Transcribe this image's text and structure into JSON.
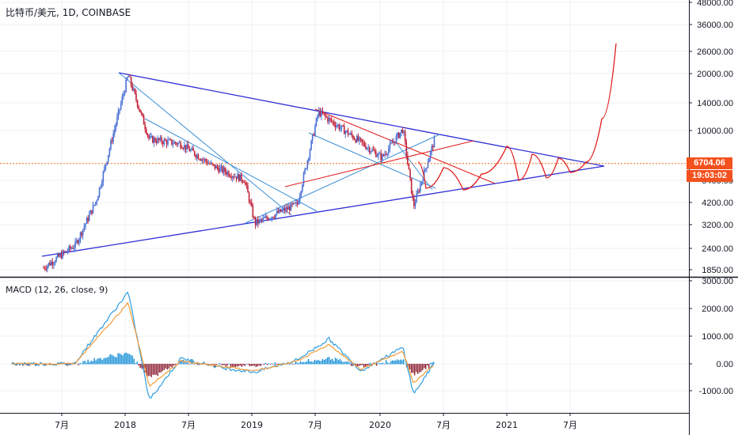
{
  "header": {
    "symbol": "比特币/美元",
    "interval": "1D",
    "exchange": "COINBASE"
  },
  "macd_header": {
    "label": "MACD (12, 26, close, 9)"
  },
  "price_axis": {
    "ticks": [
      "48000.00",
      "36000.00",
      "26000.00",
      "20000.00",
      "14000.00",
      "10000.00",
      "5400.00",
      "4200.00",
      "3200.00",
      "2400.00",
      "1850.00"
    ],
    "current_price": "6704.06",
    "countdown": "19:03:02"
  },
  "macd_axis": {
    "ticks": [
      "3000.00",
      "2000.00",
      "1000.00",
      "0.00",
      "-1000.00"
    ]
  },
  "time_axis": {
    "ticks": [
      "7月",
      "2018",
      "7月",
      "2019",
      "7月",
      "2020",
      "7月",
      "2021",
      "7月"
    ]
  },
  "colors": {
    "trend_blue": "#2f2fd6",
    "thin_blue": "#3d8fd8",
    "projection_red": "#e31a1a",
    "price_line": "#f26b1d",
    "badge_red": "#f4511e",
    "candle_up": "#4b72d6",
    "candle_down": "#c4243a",
    "macd_line": "#2e9ee0",
    "signal_line": "#f39c3b",
    "hist_pos": "#0f8dd6",
    "hist_neg": "#8a1a2e"
  },
  "chart_data": [
    {
      "type": "line",
      "title": "比特币/美元, 1D, COINBASE",
      "scale": "log",
      "ylim": [
        1700,
        48000
      ],
      "x": [
        "2017-04",
        "2017-07",
        "2017-09",
        "2017-12",
        "2018-02",
        "2018-05",
        "2018-08",
        "2018-11",
        "2018-12",
        "2019-04",
        "2019-06",
        "2019-09",
        "2019-12",
        "2020-02",
        "2020-03",
        "2020-05"
      ],
      "series": [
        {
          "values": [
            1900,
            2500,
            4300,
            19500,
            9000,
            8500,
            6500,
            5500,
            3250,
            4100,
            12500,
            9500,
            7200,
            10200,
            4000,
            9000
          ]
        }
      ],
      "current_price": 6704.06,
      "grid": true
    },
    {
      "type": "line",
      "title": "MACD (12, 26, close, 9)",
      "ylim": [
        -1500,
        3000
      ],
      "x": [
        "2017-07",
        "2017-12",
        "2018-02",
        "2018-05",
        "2018-09",
        "2018-12",
        "2019-04",
        "2019-07",
        "2019-10",
        "2020-02",
        "2020-03",
        "2020-05"
      ],
      "series": [
        {
          "values": [
            50,
            2600,
            -1300,
            200,
            -150,
            -300,
            150,
            900,
            -250,
            600,
            -1100,
            50
          ]
        },
        {
          "values": [
            30,
            2200,
            -800,
            100,
            -100,
            -250,
            100,
            700,
            -200,
            450,
            -700,
            0
          ]
        }
      ],
      "grid": true
    }
  ]
}
